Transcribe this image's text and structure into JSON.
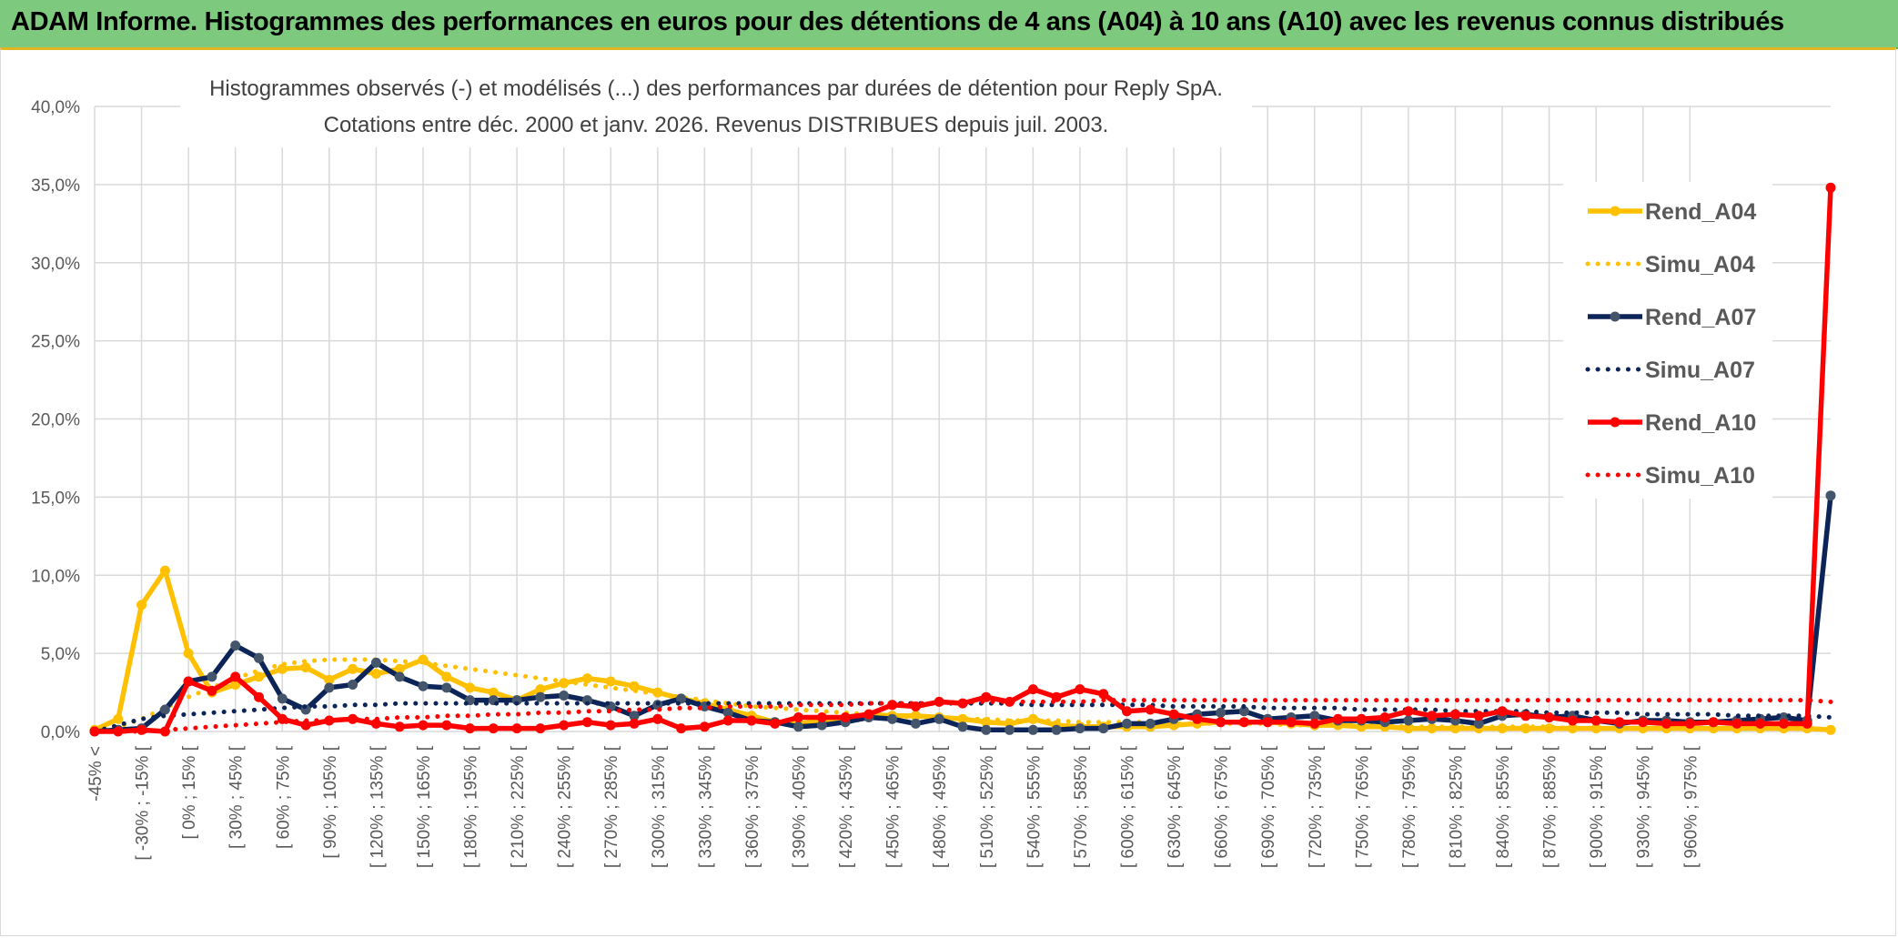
{
  "banner": {
    "title": "ADAM Informe. Histogrammes des performances en euros pour des détentions de 4 ans (A04) à 10 ans (A10) avec les revenus connus distribués",
    "color": "#7dc97d"
  },
  "chart_data": {
    "type": "line",
    "title": "Histogrammes observés (-) et modélisés (...) des performances par durées de détention pour Reply SpA.",
    "subtitle": "Cotations entre déc. 2000 et janv. 2026. Revenus DISTRIBUES depuis juil. 2003.",
    "ylim": [
      0,
      40
    ],
    "yticks": [
      "0,0%",
      "5,0%",
      "10,0%",
      "15,0%",
      "20,0%",
      "25,0%",
      "30,0%",
      "35,0%",
      "40,0%"
    ],
    "grid": true,
    "legend_position": "right",
    "x_tick_labels": [
      "-45% <",
      "[ -30% ; -15% [",
      "[ 0% ; 15% [",
      "[ 30% ; 45% [",
      "[ 60% ; 75% [",
      "[ 90% ; 105% [",
      "[ 120% ; 135% [",
      "[ 150% ; 165% [",
      "[ 180% ; 195% [",
      "[ 210% ; 225% [",
      "[ 240% ; 255% [",
      "[ 270% ; 285% [",
      "[ 300% ; 315% [",
      "[ 330% ; 345% [",
      "[ 360% ; 375% [",
      "[ 390% ; 405% [",
      "[ 420% ; 435% [",
      "[ 450% ; 465% [",
      "[ 480% ; 495% [",
      "[ 510% ; 525% [",
      "[ 540% ; 555% [",
      "[ 570% ; 585% [",
      "[ 600% ; 615% [",
      "[ 630% ; 645% [",
      "[ 660% ; 675% [",
      "[ 690% ; 705% [",
      "[ 720% ; 735% [",
      "[ 750% ; 765% [",
      "[ 780% ; 795% [",
      "[ 810% ; 825% [",
      "[ 840% ; 855% [",
      "[ 870% ; 885% [",
      "[ 900% ; 915% [",
      "[ 930% ; 945% [",
      "[ 960% ; 975% ["
    ],
    "series": [
      {
        "name": "Rend_A04",
        "color": "#ffc000",
        "style": "solid",
        "values": [
          0.1,
          0.8,
          8.1,
          10.3,
          5.0,
          2.5,
          3.0,
          3.5,
          4.0,
          4.1,
          3.3,
          4.0,
          3.7,
          4.0,
          4.6,
          3.5,
          2.8,
          2.5,
          2.0,
          2.7,
          3.1,
          3.4,
          3.2,
          2.9,
          2.5,
          2.1,
          1.8,
          1.4,
          1.0,
          0.6,
          0.5,
          0.7,
          0.9,
          1.1,
          1.0,
          1.0,
          0.9,
          0.8,
          0.6,
          0.5,
          0.8,
          0.4,
          0.3,
          0.3,
          0.3,
          0.3,
          0.4,
          0.5,
          0.6,
          0.6,
          0.6,
          0.5,
          0.4,
          0.4,
          0.3,
          0.3,
          0.2,
          0.2,
          0.2,
          0.2,
          0.2,
          0.2,
          0.2,
          0.2,
          0.2,
          0.2,
          0.2,
          0.2,
          0.2,
          0.2,
          0.2,
          0.2,
          0.2,
          0.2,
          0.1
        ]
      },
      {
        "name": "Simu_A04",
        "color": "#ffc000",
        "style": "dotted",
        "values": [
          0.0,
          0.3,
          0.8,
          1.5,
          2.2,
          2.8,
          3.4,
          3.9,
          4.3,
          4.5,
          4.6,
          4.6,
          4.6,
          4.5,
          4.4,
          4.2,
          4.0,
          3.8,
          3.6,
          3.4,
          3.2,
          3.0,
          2.8,
          2.6,
          2.4,
          2.2,
          2.0,
          1.8,
          1.6,
          1.5,
          1.4,
          1.3,
          1.2,
          1.1,
          1.0,
          0.9,
          0.9,
          0.8,
          0.8,
          0.7,
          0.7,
          0.7,
          0.6,
          0.6,
          0.6,
          0.6,
          0.5,
          0.5,
          0.5,
          0.5,
          0.5,
          0.4,
          0.4,
          0.4,
          0.4,
          0.4,
          0.3,
          0.3,
          0.3,
          0.3,
          0.3,
          0.3,
          0.3,
          0.2,
          0.2,
          0.2,
          0.2,
          0.2,
          0.2,
          0.2,
          0.2,
          0.2,
          0.2,
          0.2,
          0.1
        ]
      },
      {
        "name": "Rend_A07",
        "color": "#0c2457",
        "style": "solid",
        "values": [
          0.0,
          0.1,
          0.2,
          1.4,
          3.2,
          3.5,
          5.5,
          4.7,
          2.1,
          1.4,
          2.8,
          3.0,
          4.4,
          3.5,
          2.9,
          2.8,
          2.0,
          2.0,
          2.0,
          2.2,
          2.3,
          2.0,
          1.6,
          1.0,
          1.7,
          2.1,
          1.6,
          1.2,
          0.7,
          0.6,
          0.3,
          0.4,
          0.6,
          0.9,
          0.8,
          0.5,
          0.8,
          0.3,
          0.1,
          0.1,
          0.1,
          0.1,
          0.2,
          0.2,
          0.5,
          0.5,
          0.8,
          1.1,
          1.2,
          1.3,
          0.8,
          0.9,
          1.0,
          0.7,
          0.7,
          0.6,
          0.7,
          0.8,
          0.7,
          0.5,
          1.0,
          1.1,
          0.9,
          1.0,
          0.7,
          0.5,
          0.7,
          0.7,
          0.6,
          0.6,
          0.7,
          0.8,
          0.9,
          0.7,
          15.1
        ]
      },
      {
        "name": "Simu_A07",
        "color": "#0c2457",
        "style": "dotted",
        "values": [
          0.0,
          0.4,
          0.8,
          1.0,
          1.1,
          1.2,
          1.3,
          1.4,
          1.5,
          1.6,
          1.6,
          1.7,
          1.7,
          1.8,
          1.8,
          1.8,
          1.8,
          1.8,
          1.8,
          1.8,
          1.8,
          1.8,
          1.8,
          1.8,
          1.8,
          1.8,
          1.8,
          1.8,
          1.8,
          1.8,
          1.8,
          1.8,
          1.8,
          1.8,
          1.8,
          1.8,
          1.8,
          1.8,
          1.8,
          1.8,
          1.7,
          1.7,
          1.7,
          1.7,
          1.7,
          1.7,
          1.6,
          1.6,
          1.6,
          1.6,
          1.5,
          1.5,
          1.5,
          1.5,
          1.4,
          1.4,
          1.4,
          1.4,
          1.3,
          1.3,
          1.3,
          1.3,
          1.2,
          1.2,
          1.2,
          1.2,
          1.1,
          1.1,
          1.1,
          1.1,
          1.0,
          1.0,
          1.0,
          1.0,
          0.9
        ]
      },
      {
        "name": "Rend_A10",
        "color": "#ff0000",
        "style": "solid",
        "values": [
          0.0,
          0.0,
          0.1,
          0.0,
          3.2,
          2.6,
          3.5,
          2.2,
          0.8,
          0.4,
          0.7,
          0.8,
          0.5,
          0.3,
          0.4,
          0.4,
          0.2,
          0.2,
          0.2,
          0.2,
          0.4,
          0.6,
          0.4,
          0.5,
          0.8,
          0.2,
          0.3,
          0.7,
          0.7,
          0.5,
          0.9,
          0.9,
          0.9,
          1.1,
          1.7,
          1.6,
          1.9,
          1.8,
          2.2,
          1.9,
          2.7,
          2.2,
          2.7,
          2.4,
          1.3,
          1.4,
          1.1,
          0.8,
          0.6,
          0.6,
          0.6,
          0.6,
          0.5,
          0.8,
          0.8,
          0.9,
          1.3,
          1.0,
          1.1,
          1.0,
          1.3,
          1.0,
          0.9,
          0.7,
          0.7,
          0.6,
          0.6,
          0.5,
          0.5,
          0.6,
          0.5,
          0.5,
          0.5,
          0.5,
          34.8
        ]
      },
      {
        "name": "Simu_A10",
        "color": "#ff0000",
        "style": "dotted",
        "values": [
          0.0,
          0.0,
          0.0,
          0.1,
          0.2,
          0.3,
          0.4,
          0.5,
          0.6,
          0.7,
          0.7,
          0.8,
          0.8,
          0.9,
          0.9,
          1.0,
          1.0,
          1.1,
          1.1,
          1.2,
          1.2,
          1.3,
          1.3,
          1.4,
          1.4,
          1.5,
          1.5,
          1.6,
          1.6,
          1.6,
          1.7,
          1.7,
          1.7,
          1.8,
          1.8,
          1.8,
          1.8,
          1.9,
          1.9,
          1.9,
          1.9,
          1.9,
          1.9,
          2.0,
          2.0,
          2.0,
          2.0,
          2.0,
          2.0,
          2.0,
          2.0,
          2.0,
          2.0,
          2.0,
          2.0,
          2.0,
          2.0,
          2.0,
          2.0,
          2.0,
          2.0,
          2.0,
          2.0,
          2.0,
          2.0,
          2.0,
          2.0,
          2.0,
          2.0,
          2.0,
          2.0,
          2.0,
          2.0,
          2.0,
          1.9
        ]
      }
    ]
  }
}
